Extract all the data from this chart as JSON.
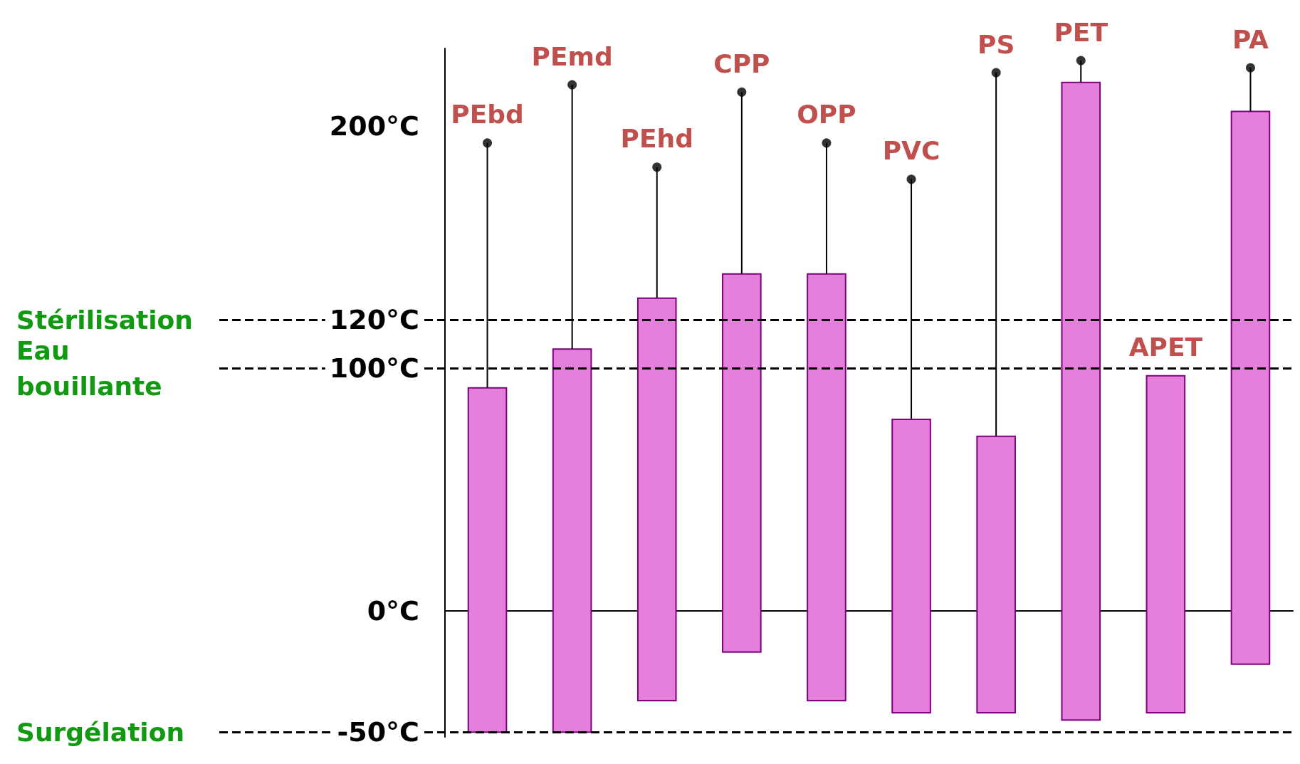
{
  "chart_data": {
    "type": "bar",
    "categories": [
      "PEbd",
      "PEmd",
      "PEhd",
      "CPP",
      "OPP",
      "PVC",
      "PS",
      "PET",
      "APET",
      "PA"
    ],
    "series": [
      {
        "color": "#e47fdc",
        "base": [
          -50,
          -50,
          -37,
          -17,
          -37,
          -42,
          -42,
          -45,
          -42,
          -22
        ],
        "values": [
          142,
          158,
          166,
          156,
          176,
          121,
          114,
          263,
          139,
          228
        ]
      },
      {
        "color": "#000000",
        "base": [
          92,
          108,
          129,
          139,
          139,
          79,
          72,
          218,
          null,
          206
        ],
        "values": [
          101,
          109,
          54,
          75,
          54,
          99,
          150,
          9,
          null,
          18
        ]
      },
      {
        "type": "scatter",
        "color": "#000000",
        "values": [
          193,
          217,
          183,
          214,
          193,
          178,
          222,
          227,
          null,
          224
        ]
      }
    ],
    "marker": "circle",
    "grid": false,
    "ylim": [
      -52,
      232
    ],
    "yticks": [
      {
        "value": -50,
        "label": "-50°C"
      },
      {
        "value": 0,
        "label": "0°C"
      },
      {
        "value": 100,
        "label": "100°C"
      },
      {
        "value": 120,
        "label": "120°C"
      },
      {
        "value": 200,
        "label": "200°C"
      }
    ],
    "ref_lines": [
      {
        "axis": "y",
        "value": 120,
        "label": "Stérilisation",
        "line_style": "dashed"
      },
      {
        "axis": "y",
        "value": 100,
        "label": "Eau bouillante",
        "line_style": "dashed"
      },
      {
        "axis": "y",
        "value": -50,
        "label": "Surgélation",
        "line_style": "dashed"
      }
    ]
  }
}
